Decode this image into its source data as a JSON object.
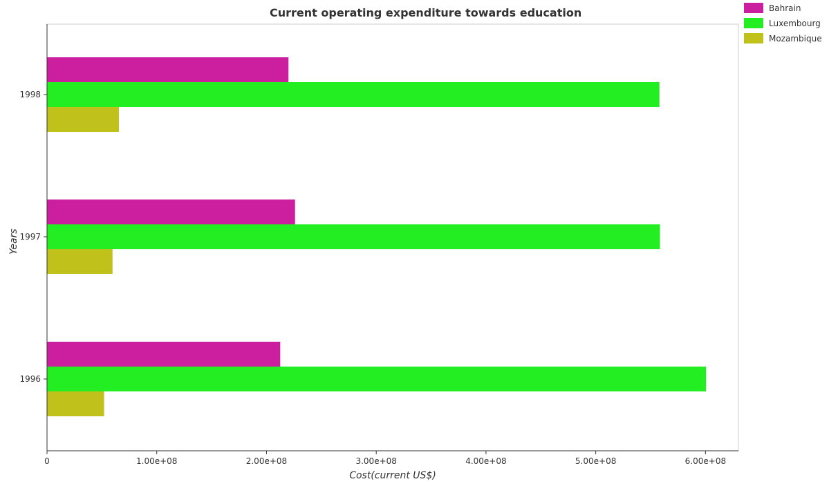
{
  "chart_data": {
    "type": "bar",
    "orientation": "horizontal",
    "title": "Current operating expenditure towards education",
    "xlabel": "Cost(current US$)",
    "ylabel": "Years",
    "categories": [
      "1996",
      "1997",
      "1998"
    ],
    "xlim": [
      0,
      630000000
    ],
    "xticks": [
      0,
      100000000,
      200000000,
      300000000,
      400000000,
      500000000,
      600000000
    ],
    "xtick_labels": [
      "0",
      "1.00e+08",
      "2.00e+08",
      "3.00e+08",
      "4.00e+08",
      "5.00e+08",
      "6.00e+08"
    ],
    "legend_position": "top-right",
    "grid": false,
    "series": [
      {
        "name": "Bahrain",
        "color": "#cc1f9f",
        "values": [
          212500000,
          226000000,
          220000000
        ]
      },
      {
        "name": "Luxembourg",
        "color": "#22ee22",
        "values": [
          600500000,
          558500000,
          558000000
        ]
      },
      {
        "name": "Mozambique",
        "color": "#c1c11c",
        "values": [
          52000000,
          59700000,
          65500000
        ]
      }
    ]
  }
}
